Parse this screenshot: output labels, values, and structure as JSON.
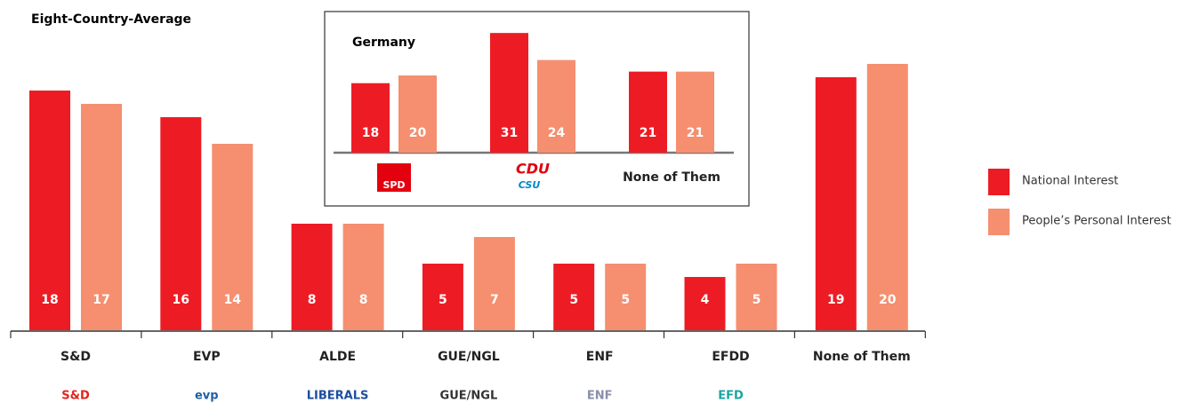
{
  "chart_data": [
    {
      "type": "bar",
      "title": "Eight-Country-Average",
      "categories": [
        "S&D",
        "EVP",
        "ALDE",
        "GUE/NGL",
        "ENF",
        "EFDD",
        "None of Them"
      ],
      "logos": [
        "S&D",
        "evp",
        "LIBERALS",
        "GUE/NGL",
        "ENF",
        "EFD",
        null
      ],
      "logo_colors": [
        "#e2231a",
        "#1f5fa8",
        "#1c4e9c",
        "#333333",
        "#8a8fa8",
        "#1aa3a3",
        null
      ],
      "series": [
        {
          "name": "National Interest",
          "color": "#ed1c24",
          "values": [
            18,
            16,
            8,
            5,
            5,
            4,
            19
          ]
        },
        {
          "name": "People’s Personal Interest",
          "color": "#f58f6f",
          "values": [
            17,
            14,
            8,
            7,
            5,
            5,
            20
          ]
        }
      ],
      "legend": "right"
    },
    {
      "type": "bar",
      "title": "Germany",
      "categories": [
        "SPD",
        "CDU",
        "None of Them"
      ],
      "category_sublabels": [
        null,
        "CSU",
        null
      ],
      "category_styles": [
        "logo-box",
        "logo-text",
        "plain"
      ],
      "series": [
        {
          "name": "National Interest",
          "color": "#ed1c24",
          "values": [
            18,
            31,
            21
          ]
        },
        {
          "name": "People’s Personal Interest",
          "color": "#f58f6f",
          "values": [
            20,
            24,
            21
          ]
        }
      ]
    }
  ]
}
